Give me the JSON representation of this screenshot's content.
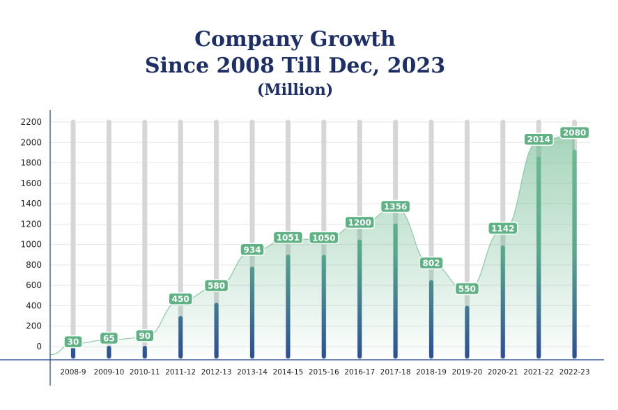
{
  "chart_data": {
    "type": "bar",
    "title": "Company Growth",
    "subtitle": "Since 2008 Till Dec, 2023",
    "unit_label": "(Million)",
    "xlabel": "",
    "ylabel": "",
    "ylim": [
      0,
      2200
    ],
    "yticks": [
      0,
      200,
      400,
      600,
      800,
      1000,
      1200,
      1400,
      1600,
      1800,
      2000,
      2200
    ],
    "categories": [
      "2008-9",
      "2009-10",
      "2010-11",
      "2011-12",
      "2012-13",
      "2013-14",
      "2014-15",
      "2015-16",
      "2016-17",
      "2017-18",
      "2018-19",
      "2019-20",
      "2020-21",
      "2021-22",
      "2022-23"
    ],
    "values": [
      30,
      65,
      90,
      450,
      580,
      934,
      1051,
      1050,
      1200,
      1356,
      802,
      550,
      1142,
      2014,
      2080
    ],
    "grid": true,
    "colors": {
      "title": "#1d2f66",
      "track": "#d6d6d9",
      "bar_top": "#66b88f",
      "bar_bottom": "#2b4f96",
      "label_bg": "#5fb284",
      "area": "#5fb284",
      "axis": "#1d3f8a"
    }
  }
}
